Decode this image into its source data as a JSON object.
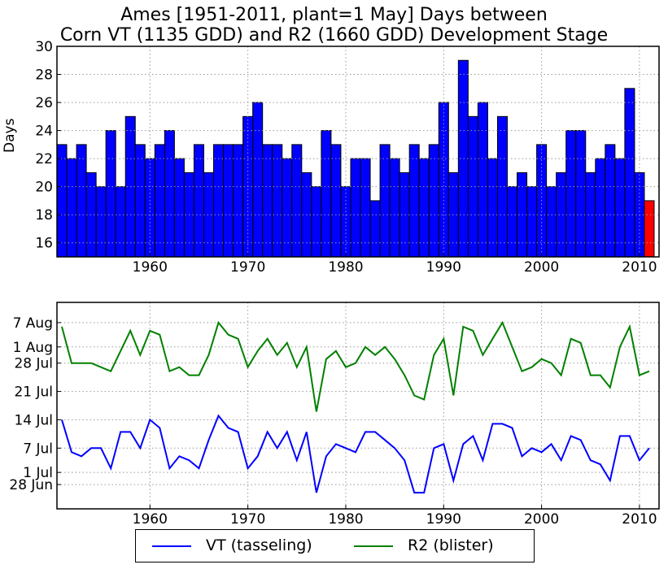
{
  "title_line1": "Ames [1951-2011, plant=1 May] Days between",
  "title_line2": "Corn VT (1135 GDD) and R2 (1660 GDD) Development Stage",
  "colors": {
    "bar": "#0000ff",
    "bar_highlight": "#ff0000",
    "vt": "#0000ff",
    "r2": "#008000",
    "grid": "#999999"
  },
  "chart_data": [
    {
      "type": "bar",
      "ylabel": "Days",
      "xlabel": "",
      "ylim": [
        15,
        30
      ],
      "xlim": [
        1950.5,
        2012
      ],
      "grid": true,
      "yticks": [
        16,
        18,
        20,
        22,
        24,
        26,
        28,
        30
      ],
      "xticks": [
        1960,
        1970,
        1980,
        1990,
        2000,
        2010
      ],
      "highlight_year": 2011,
      "years": [
        1951,
        1952,
        1953,
        1954,
        1955,
        1956,
        1957,
        1958,
        1959,
        1960,
        1961,
        1962,
        1963,
        1964,
        1965,
        1966,
        1967,
        1968,
        1969,
        1970,
        1971,
        1972,
        1973,
        1974,
        1975,
        1976,
        1977,
        1978,
        1979,
        1980,
        1981,
        1982,
        1983,
        1984,
        1985,
        1986,
        1987,
        1988,
        1989,
        1990,
        1991,
        1992,
        1993,
        1994,
        1995,
        1996,
        1997,
        1998,
        1999,
        2000,
        2001,
        2002,
        2003,
        2004,
        2005,
        2006,
        2007,
        2008,
        2009,
        2010,
        2011
      ],
      "values": [
        23,
        22,
        23,
        21,
        20,
        24,
        20,
        25,
        23,
        22,
        23,
        24,
        22,
        21,
        23,
        21,
        23,
        23,
        23,
        25,
        26,
        23,
        23,
        22,
        23,
        21,
        20,
        24,
        23,
        20,
        22,
        22,
        19,
        23,
        22,
        21,
        23,
        22,
        23,
        26,
        21,
        29,
        25,
        26,
        22,
        25,
        20,
        21,
        20,
        23,
        20,
        21,
        24,
        24,
        21,
        22,
        23,
        22,
        27,
        21,
        19
      ]
    },
    {
      "type": "line",
      "xlim": [
        1950.5,
        2012
      ],
      "grid": true,
      "xticks": [
        1960,
        1970,
        1980,
        1990,
        2000,
        2010
      ],
      "ytick_labels": [
        "28 Jun",
        "1 Jul",
        "7 Jul",
        "14 Jul",
        "21 Jul",
        "28 Jul",
        "1 Aug",
        "7 Aug"
      ],
      "ytick_values": [
        "06-28",
        "07-01",
        "07-07",
        "07-14",
        "07-21",
        "07-28",
        "08-01",
        "08-07"
      ],
      "legend_placement": "bottom",
      "x": [
        1951,
        1952,
        1953,
        1954,
        1955,
        1956,
        1957,
        1958,
        1959,
        1960,
        1961,
        1962,
        1963,
        1964,
        1965,
        1966,
        1967,
        1968,
        1969,
        1970,
        1971,
        1972,
        1973,
        1974,
        1975,
        1976,
        1977,
        1978,
        1979,
        1980,
        1981,
        1982,
        1983,
        1984,
        1985,
        1986,
        1987,
        1988,
        1989,
        1990,
        1991,
        1992,
        1993,
        1994,
        1995,
        1996,
        1997,
        1998,
        1999,
        2000,
        2001,
        2002,
        2003,
        2004,
        2005,
        2006,
        2007,
        2008,
        2009,
        2010,
        2011
      ],
      "series": [
        {
          "name": "VT (tasseling)",
          "color": "#0000ff",
          "values": [
            "07-14",
            "07-06",
            "07-05",
            "07-07",
            "07-07",
            "07-02",
            "07-11",
            "07-11",
            "07-07",
            "07-14",
            "07-12",
            "07-02",
            "07-05",
            "07-04",
            "07-02",
            "07-09",
            "07-15",
            "07-12",
            "07-11",
            "07-02",
            "07-05",
            "07-11",
            "07-07",
            "07-11",
            "07-04",
            "07-11",
            "06-26",
            "07-05",
            "07-08",
            "07-07",
            "07-06",
            "07-11",
            "07-11",
            "07-09",
            "07-07",
            "07-04",
            "06-26",
            "06-26",
            "07-07",
            "07-08",
            "06-29",
            "07-08",
            "07-10",
            "07-04",
            "07-13",
            "07-13",
            "07-12",
            "07-05",
            "07-07",
            "07-06",
            "07-08",
            "07-04",
            "07-10",
            "07-09",
            "07-04",
            "07-03",
            "06-29",
            "07-10",
            "07-10",
            "07-04",
            "07-07"
          ]
        },
        {
          "name": "R2 (blister)",
          "color": "#008000",
          "values": [
            "08-06",
            "07-28",
            "07-28",
            "07-28",
            "07-27",
            "07-26",
            "07-31",
            "08-05",
            "07-30",
            "08-05",
            "08-04",
            "07-26",
            "07-27",
            "07-25",
            "07-25",
            "07-30",
            "08-07",
            "08-04",
            "08-03",
            "07-27",
            "07-31",
            "08-03",
            "07-30",
            "08-02",
            "07-27",
            "08-01",
            "07-16",
            "07-29",
            "07-31",
            "07-27",
            "07-28",
            "08-01",
            "07-30",
            "08-01",
            "07-29",
            "07-25",
            "07-20",
            "07-19",
            "07-30",
            "08-03",
            "07-20",
            "08-06",
            "08-05",
            "07-30",
            "08-03",
            "08-07",
            "08-01",
            "07-26",
            "07-27",
            "07-29",
            "07-28",
            "07-25",
            "08-03",
            "08-02",
            "07-25",
            "07-25",
            "07-22",
            "08-01",
            "08-06",
            "07-25",
            "07-26"
          ]
        }
      ]
    }
  ]
}
